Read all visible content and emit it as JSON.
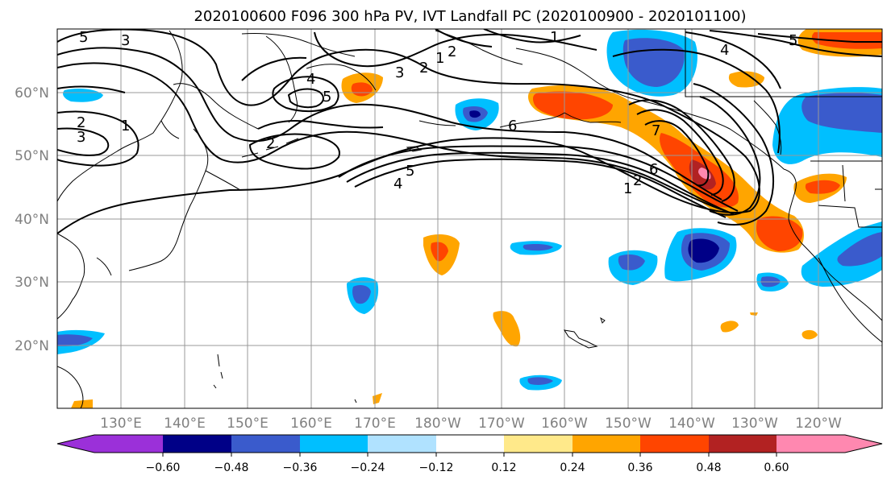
{
  "title": "2020100600 F096 300 hPa PV, IVT Landfall PC (2020100900 - 2020101100)",
  "map": {
    "lon_labels": [
      "130°E",
      "140°E",
      "150°E",
      "160°E",
      "170°E",
      "180°W",
      "170°W",
      "160°W",
      "150°W",
      "140°W",
      "130°W",
      "120°W"
    ],
    "lat_labels": [
      "60°N",
      "50°N",
      "40°N",
      "30°N",
      "20°N"
    ],
    "contour_labels": [
      "5",
      "3",
      "1",
      "2",
      "3",
      "2",
      "1",
      "4",
      "5",
      "2",
      "3",
      "2",
      "1",
      "6",
      "5",
      "4",
      "6",
      "7",
      "1",
      "2",
      "4",
      "5"
    ],
    "grid_color": "#999999",
    "coast_color": "#000000",
    "contour_color": "#000000"
  },
  "colorbar": {
    "ticks": [
      "−0.60",
      "−0.48",
      "−0.36",
      "−0.24",
      "−0.12",
      "0.12",
      "0.24",
      "0.36",
      "0.48",
      "0.60"
    ],
    "colors": [
      "#9b30d9",
      "#000087",
      "#3a5bcc",
      "#00bfff",
      "#b0e2ff",
      "#ffffff",
      "#ffe98a",
      "#ffa500",
      "#ff4500",
      "#b22222",
      "#ff88b0"
    ]
  }
}
